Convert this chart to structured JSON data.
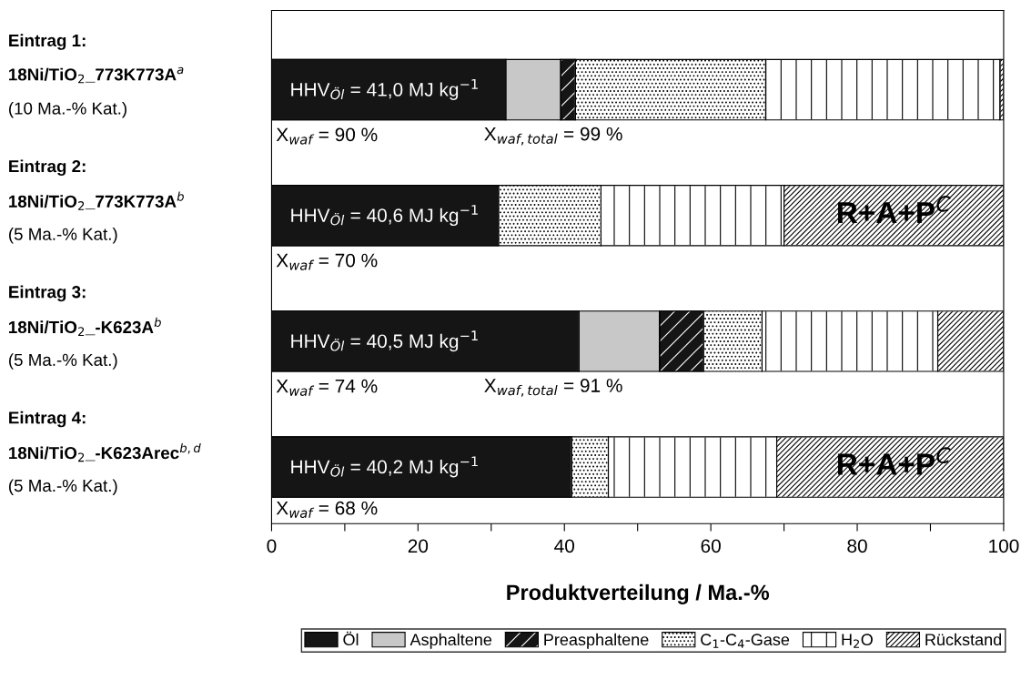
{
  "chart_data": {
    "type": "bar",
    "orientation": "horizontal",
    "stacked": true,
    "categories": [
      "Eintrag 1:\n18Ni/TiO$_{2}$_773K773A$^{a}$\n(10 Ma.-% Kat.)",
      "Eintrag 2:\n18Ni/TiO$_{2}$_773K773A$^{b}$\n(5 Ma.-% Kat.)",
      "Eintrag 3:\n18Ni/TiO$_{2}$_-K623A$^{b}$\n(5 Ma.-% Kat.)",
      "Eintrag 4:\n18Ni/TiO$_{2}$_-K623Arec$^{b,d}$\n(5 Ma.-% Kat.)"
    ],
    "series": [
      {
        "name": "Öl",
        "color": "#151515",
        "values": [
          32,
          31,
          42,
          41
        ]
      },
      {
        "name": "Asphaltene",
        "color": "#c8c8c8",
        "values": [
          7.5,
          0,
          11,
          0
        ]
      },
      {
        "name": "Preasphaltene",
        "color": "#151515",
        "values": [
          2,
          0,
          6,
          0
        ]
      },
      {
        "name": "C$_{1}$-C$_{4}$-Gase",
        "color": "#ffffff",
        "values": [
          26,
          14,
          8,
          5
        ]
      },
      {
        "name": "H$_{2}$O",
        "color": "#ffffff",
        "values": [
          32,
          25,
          24,
          23
        ]
      },
      {
        "name": "Rückstand",
        "color": "#ffffff",
        "values": [
          0.5,
          30,
          9,
          31
        ]
      }
    ],
    "xlabel": "Produktverteilung / Ma.-%",
    "xlim": [
      0,
      100
    ],
    "xticks": [
      0,
      {
        "value": 10,
        "label": null
      },
      20,
      {
        "value": 30,
        "label": null
      },
      40,
      {
        "value": 50,
        "label": null
      },
      60,
      {
        "value": 70,
        "label": null
      },
      80,
      {
        "value": 90,
        "label": null
      },
      100
    ],
    "legend": "bottom",
    "grid": false,
    "annotations": [
      "HHV$_{Öl}$ = 41,0 MJ kg$^{−1}$",
      "X$_{waf}$ = 90 %",
      "X$_{waf,total}$ = 99 %",
      "HHV$_{Öl}$ = 40,6 MJ kg$^{−1}$",
      "R+A+P$^{C}$",
      "X$_{waf}$ = 70 %",
      "HHV$_{Öl}$ = 40,5 MJ kg$^{−1}$",
      "X$_{waf}$ = 74 %",
      "X$_{waf,total}$ = 91 %",
      "HHV$_{Öl}$ = 40,2 MJ kg$^{−1}$",
      "R+A+P$^{C}$",
      "X$_{waf}$ = 68 %"
    ]
  }
}
